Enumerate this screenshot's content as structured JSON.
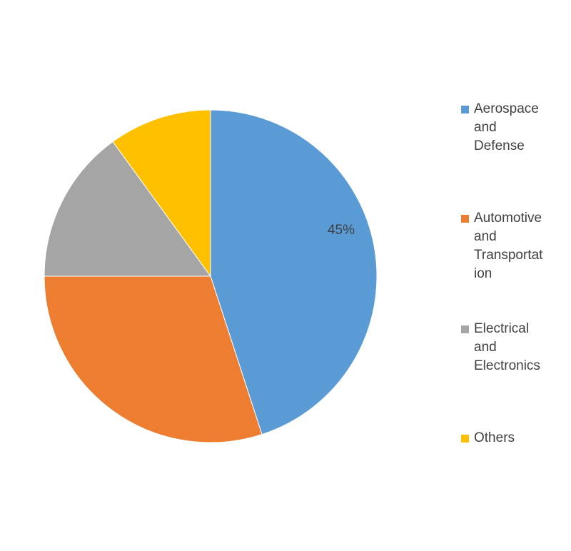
{
  "chart_data": {
    "type": "pie",
    "categories": [
      "Aerospace and Defense",
      "Automotive and Transportation",
      "Electrical and Electronics",
      "Others"
    ],
    "values": [
      45,
      30,
      15,
      10
    ],
    "data_labels": [
      "45%",
      "",
      "",
      ""
    ],
    "colors": [
      "#5B9BD5",
      "#ED7D31",
      "#A5A5A5",
      "#FFC000"
    ],
    "legend_placement": "right",
    "title": ""
  },
  "legend": {
    "items": [
      {
        "label": "Aerospace\nand\nDefense",
        "color": "#5B9BD5"
      },
      {
        "label": "Automotive\nand\nTransportat\nion",
        "color": "#ED7D31"
      },
      {
        "label": "Electrical\nand\nElectronics",
        "color": "#A5A5A5"
      },
      {
        "label": "Others",
        "color": "#FFC000"
      }
    ]
  }
}
